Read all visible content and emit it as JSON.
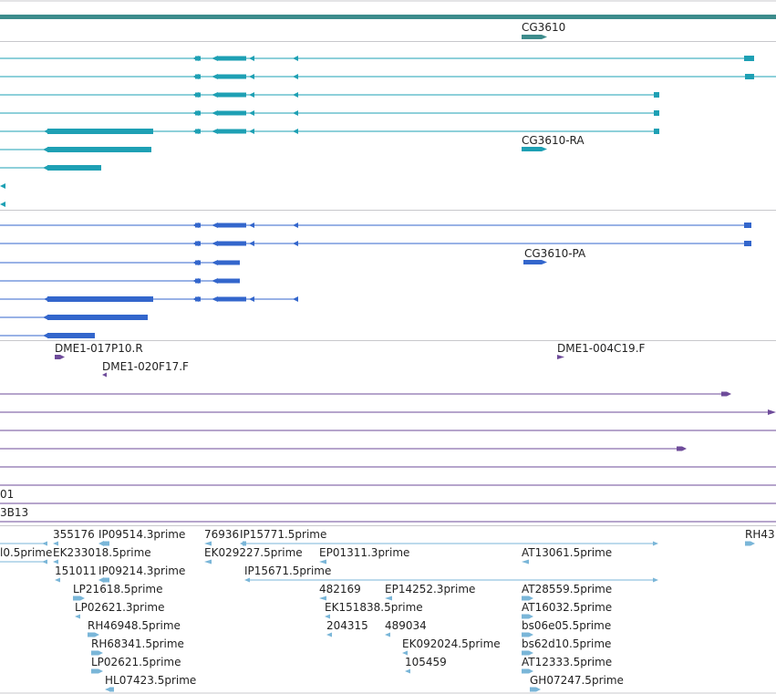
{
  "colors": {
    "gene": "#3d8c8c",
    "mrna": "#1ea0b4",
    "protein": "#3366cc",
    "bac": "#6e4b9a",
    "est": "#7ab6d8",
    "divider": "#c8c8cc"
  },
  "gene_track": {
    "label": "CG3610"
  },
  "mrna_track": {
    "label": "CG3610-RA"
  },
  "protein_track": {
    "label": "CG3610-PA"
  },
  "bac_track": {
    "labels": [
      "DME1-017P10.R",
      "DME1-004C19.F",
      "DME1-020F17.F"
    ]
  },
  "mid_labels": [
    "01",
    "3B13"
  ],
  "est_track": {
    "labels": [
      "355176",
      "IP09514.3prime",
      "76936",
      "IP15771.5prime",
      "RH43",
      "l0.5prime",
      "EK233018.5prime",
      "EK029227.5prime",
      "EP01311.3prime",
      "AT13061.5prime",
      "151011",
      "IP09214.3prime",
      "IP15671.5prime",
      "LP21618.5prime",
      "482169",
      "EP14252.3prime",
      "AT28559.5prime",
      "LP02621.3prime",
      "EK151838.5prime",
      "AT16032.5prime",
      "RH46948.5prime",
      "204315",
      "489034",
      "bs06e05.5prime",
      "RH68341.5prime",
      "EK092024.5prime",
      "bs62d10.5prime",
      "LP02621.5prime",
      "105459",
      "AT12333.5prime",
      "HL07423.5prime",
      "GH07247.5prime"
    ]
  }
}
